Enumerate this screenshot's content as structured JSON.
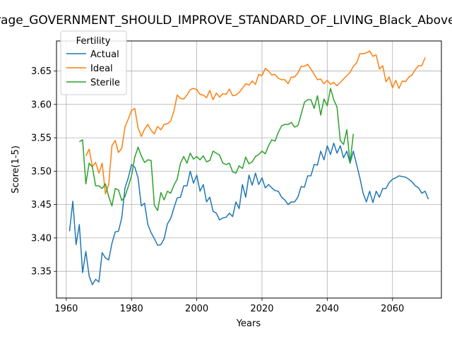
{
  "chart_data": {
    "type": "line",
    "title": "Average_GOVERNMENT_SHOULD_IMPROVE_STANDARD_OF_LIVING_Black_Above_High_School",
    "xlabel": "Years",
    "ylabel": "Score(1-5)",
    "xlim": [
      1957,
      2075
    ],
    "ylim": [
      3.31,
      3.695
    ],
    "xticks": [
      1960,
      1980,
      2000,
      2020,
      2040,
      2060
    ],
    "yticks": [
      3.35,
      3.4,
      3.45,
      3.5,
      3.55,
      3.6,
      3.65
    ],
    "grid": true,
    "legend": {
      "title": "Fertility",
      "position": "top-left"
    },
    "series": [
      {
        "name": "Actual",
        "color": "#1f77b4",
        "points": [
          [
            1961,
            3.41
          ],
          [
            1962,
            3.455
          ],
          [
            1963,
            3.39
          ],
          [
            1964,
            3.42
          ],
          [
            1965,
            3.348
          ],
          [
            1966,
            3.38
          ],
          [
            1967,
            3.343
          ],
          [
            1968,
            3.33
          ],
          [
            1969,
            3.338
          ],
          [
            1970,
            3.334
          ],
          [
            1971,
            3.378
          ],
          [
            1972,
            3.37
          ],
          [
            1973,
            3.367
          ],
          [
            1974,
            3.392
          ],
          [
            1975,
            3.409
          ],
          [
            1976,
            3.41
          ],
          [
            1977,
            3.43
          ],
          [
            1978,
            3.475
          ],
          [
            1979,
            3.49
          ],
          [
            1980,
            3.51
          ],
          [
            1981,
            3.506
          ],
          [
            1982,
            3.49
          ],
          [
            1983,
            3.448
          ],
          [
            1984,
            3.452
          ],
          [
            1985,
            3.42
          ],
          [
            1986,
            3.408
          ],
          [
            1987,
            3.399
          ],
          [
            1988,
            3.389
          ],
          [
            1989,
            3.39
          ],
          [
            1990,
            3.399
          ],
          [
            1991,
            3.421
          ],
          [
            1992,
            3.429
          ],
          [
            1993,
            3.445
          ],
          [
            1994,
            3.46
          ],
          [
            1995,
            3.461
          ],
          [
            1996,
            3.478
          ],
          [
            1997,
            3.478
          ],
          [
            1998,
            3.5
          ],
          [
            1999,
            3.482
          ],
          [
            2000,
            3.494
          ],
          [
            2001,
            3.47
          ],
          [
            2002,
            3.48
          ],
          [
            2003,
            3.454
          ],
          [
            2004,
            3.461
          ],
          [
            2005,
            3.44
          ],
          [
            2006,
            3.437
          ],
          [
            2007,
            3.427
          ],
          [
            2008,
            3.43
          ],
          [
            2009,
            3.431
          ],
          [
            2010,
            3.437
          ],
          [
            2011,
            3.432
          ],
          [
            2012,
            3.454
          ],
          [
            2013,
            3.444
          ],
          [
            2014,
            3.48
          ],
          [
            2015,
            3.461
          ],
          [
            2016,
            3.494
          ],
          [
            2017,
            3.479
          ],
          [
            2018,
            3.497
          ],
          [
            2019,
            3.48
          ],
          [
            2020,
            3.49
          ],
          [
            2021,
            3.475
          ],
          [
            2022,
            3.48
          ],
          [
            2023,
            3.475
          ],
          [
            2024,
            3.471
          ],
          [
            2025,
            3.47
          ],
          [
            2026,
            3.461
          ],
          [
            2027,
            3.457
          ],
          [
            2028,
            3.45
          ],
          [
            2029,
            3.454
          ],
          [
            2030,
            3.454
          ],
          [
            2031,
            3.461
          ],
          [
            2032,
            3.477
          ],
          [
            2033,
            3.476
          ],
          [
            2034,
            3.493
          ],
          [
            2035,
            3.493
          ],
          [
            2036,
            3.51
          ],
          [
            2037,
            3.509
          ],
          [
            2038,
            3.53
          ],
          [
            2039,
            3.517
          ],
          [
            2040,
            3.538
          ],
          [
            2041,
            3.525
          ],
          [
            2042,
            3.542
          ],
          [
            2043,
            3.527
          ],
          [
            2044,
            3.538
          ],
          [
            2045,
            3.52
          ],
          [
            2046,
            3.53
          ],
          [
            2047,
            3.512
          ],
          [
            2048,
            3.53
          ],
          [
            2049,
            3.51
          ],
          [
            2050,
            3.49
          ],
          [
            2051,
            3.467
          ],
          [
            2052,
            3.454
          ],
          [
            2053,
            3.47
          ],
          [
            2054,
            3.453
          ],
          [
            2055,
            3.47
          ],
          [
            2056,
            3.461
          ],
          [
            2057,
            3.474
          ],
          [
            2058,
            3.474
          ],
          [
            2059,
            3.483
          ],
          [
            2060,
            3.488
          ],
          [
            2061,
            3.49
          ],
          [
            2062,
            3.493
          ],
          [
            2063,
            3.492
          ],
          [
            2064,
            3.491
          ],
          [
            2065,
            3.488
          ],
          [
            2066,
            3.484
          ],
          [
            2067,
            3.478
          ],
          [
            2068,
            3.475
          ],
          [
            2069,
            3.467
          ],
          [
            2070,
            3.47
          ],
          [
            2071,
            3.458
          ]
        ]
      },
      {
        "name": "Ideal",
        "color": "#ff7f0e",
        "points": [
          [
            1966,
            3.523
          ],
          [
            1967,
            3.533
          ],
          [
            1968,
            3.507
          ],
          [
            1969,
            3.513
          ],
          [
            1970,
            3.497
          ],
          [
            1971,
            3.512
          ],
          [
            1972,
            3.466
          ],
          [
            1973,
            3.48
          ],
          [
            1974,
            3.538
          ],
          [
            1975,
            3.546
          ],
          [
            1976,
            3.528
          ],
          [
            1977,
            3.534
          ],
          [
            1978,
            3.566
          ],
          [
            1979,
            3.578
          ],
          [
            1980,
            3.591
          ],
          [
            1981,
            3.594
          ],
          [
            1982,
            3.565
          ],
          [
            1983,
            3.552
          ],
          [
            1984,
            3.563
          ],
          [
            1985,
            3.57
          ],
          [
            1986,
            3.561
          ],
          [
            1987,
            3.556
          ],
          [
            1988,
            3.567
          ],
          [
            1989,
            3.562
          ],
          [
            1990,
            3.57
          ],
          [
            1991,
            3.571
          ],
          [
            1992,
            3.575
          ],
          [
            1993,
            3.59
          ],
          [
            1994,
            3.614
          ],
          [
            1995,
            3.609
          ],
          [
            1996,
            3.608
          ],
          [
            1997,
            3.614
          ],
          [
            1998,
            3.622
          ],
          [
            1999,
            3.624
          ],
          [
            2000,
            3.622
          ],
          [
            2001,
            3.615
          ],
          [
            2002,
            3.614
          ],
          [
            2003,
            3.61
          ],
          [
            2004,
            3.621
          ],
          [
            2005,
            3.607
          ],
          [
            2006,
            3.617
          ],
          [
            2007,
            3.611
          ],
          [
            2008,
            3.616
          ],
          [
            2009,
            3.615
          ],
          [
            2010,
            3.623
          ],
          [
            2011,
            3.613
          ],
          [
            2012,
            3.614
          ],
          [
            2013,
            3.618
          ],
          [
            2014,
            3.624
          ],
          [
            2015,
            3.631
          ],
          [
            2016,
            3.629
          ],
          [
            2017,
            3.635
          ],
          [
            2018,
            3.63
          ],
          [
            2019,
            3.645
          ],
          [
            2020,
            3.643
          ],
          [
            2021,
            3.654
          ],
          [
            2022,
            3.65
          ],
          [
            2023,
            3.644
          ],
          [
            2024,
            3.645
          ],
          [
            2025,
            3.639
          ],
          [
            2026,
            3.637
          ],
          [
            2027,
            3.637
          ],
          [
            2028,
            3.631
          ],
          [
            2029,
            3.641
          ],
          [
            2030,
            3.641
          ],
          [
            2031,
            3.647
          ],
          [
            2032,
            3.657
          ],
          [
            2033,
            3.657
          ],
          [
            2034,
            3.66
          ],
          [
            2035,
            3.653
          ],
          [
            2036,
            3.645
          ],
          [
            2037,
            3.637
          ],
          [
            2038,
            3.638
          ],
          [
            2039,
            3.631
          ],
          [
            2040,
            3.636
          ],
          [
            2041,
            3.63
          ],
          [
            2042,
            3.633
          ],
          [
            2043,
            3.628
          ],
          [
            2044,
            3.633
          ],
          [
            2045,
            3.638
          ],
          [
            2046,
            3.643
          ],
          [
            2047,
            3.648
          ],
          [
            2048,
            3.657
          ],
          [
            2049,
            3.662
          ],
          [
            2050,
            3.676
          ],
          [
            2051,
            3.676
          ],
          [
            2052,
            3.677
          ],
          [
            2053,
            3.68
          ],
          [
            2054,
            3.672
          ],
          [
            2055,
            3.674
          ],
          [
            2056,
            3.653
          ],
          [
            2057,
            3.658
          ],
          [
            2058,
            3.634
          ],
          [
            2059,
            3.641
          ],
          [
            2060,
            3.625
          ],
          [
            2061,
            3.636
          ],
          [
            2062,
            3.624
          ],
          [
            2063,
            3.635
          ],
          [
            2064,
            3.634
          ],
          [
            2065,
            3.641
          ],
          [
            2066,
            3.644
          ],
          [
            2067,
            3.652
          ],
          [
            2068,
            3.658
          ],
          [
            2069,
            3.658
          ],
          [
            2070,
            3.67
          ]
        ]
      },
      {
        "name": "Sterile",
        "color": "#2ca02c",
        "points": [
          [
            1964,
            3.544
          ],
          [
            1965,
            3.547
          ],
          [
            1966,
            3.481
          ],
          [
            1967,
            3.512
          ],
          [
            1968,
            3.506
          ],
          [
            1969,
            3.478
          ],
          [
            1970,
            3.478
          ],
          [
            1971,
            3.474
          ],
          [
            1972,
            3.481
          ],
          [
            1973,
            3.462
          ],
          [
            1974,
            3.448
          ],
          [
            1975,
            3.474
          ],
          [
            1976,
            3.472
          ],
          [
            1977,
            3.456
          ],
          [
            1978,
            3.462
          ],
          [
            1979,
            3.477
          ],
          [
            1980,
            3.493
          ],
          [
            1981,
            3.521
          ],
          [
            1982,
            3.536
          ],
          [
            1983,
            3.523
          ],
          [
            1984,
            3.513
          ],
          [
            1985,
            3.517
          ],
          [
            1986,
            3.516
          ],
          [
            1987,
            3.449
          ],
          [
            1988,
            3.441
          ],
          [
            1989,
            3.468
          ],
          [
            1990,
            3.457
          ],
          [
            1991,
            3.47
          ],
          [
            1992,
            3.467
          ],
          [
            1993,
            3.479
          ],
          [
            1994,
            3.488
          ],
          [
            1995,
            3.512
          ],
          [
            1996,
            3.522
          ],
          [
            1997,
            3.512
          ],
          [
            1998,
            3.527
          ],
          [
            1999,
            3.518
          ],
          [
            2000,
            3.522
          ],
          [
            2001,
            3.517
          ],
          [
            2002,
            3.523
          ],
          [
            2003,
            3.514
          ],
          [
            2004,
            3.516
          ],
          [
            2005,
            3.53
          ],
          [
            2006,
            3.527
          ],
          [
            2007,
            3.524
          ],
          [
            2008,
            3.512
          ],
          [
            2009,
            3.51
          ],
          [
            2010,
            3.512
          ],
          [
            2011,
            3.499
          ],
          [
            2012,
            3.497
          ],
          [
            2013,
            3.508
          ],
          [
            2014,
            3.504
          ],
          [
            2015,
            3.521
          ],
          [
            2016,
            3.511
          ],
          [
            2017,
            3.514
          ],
          [
            2018,
            3.522
          ],
          [
            2019,
            3.525
          ],
          [
            2020,
            3.53
          ],
          [
            2021,
            3.526
          ],
          [
            2022,
            3.538
          ],
          [
            2023,
            3.547
          ],
          [
            2024,
            3.545
          ],
          [
            2025,
            3.558
          ],
          [
            2026,
            3.568
          ],
          [
            2027,
            3.57
          ],
          [
            2028,
            3.57
          ],
          [
            2029,
            3.573
          ],
          [
            2030,
            3.566
          ],
          [
            2031,
            3.568
          ],
          [
            2032,
            3.585
          ],
          [
            2033,
            3.603
          ],
          [
            2034,
            3.607
          ],
          [
            2035,
            3.607
          ],
          [
            2036,
            3.594
          ],
          [
            2037,
            3.613
          ],
          [
            2038,
            3.584
          ],
          [
            2039,
            3.608
          ],
          [
            2040,
            3.598
          ],
          [
            2041,
            3.624
          ],
          [
            2042,
            3.607
          ],
          [
            2043,
            3.596
          ],
          [
            2044,
            3.546
          ],
          [
            2045,
            3.54
          ],
          [
            2046,
            3.562
          ],
          [
            2047,
            3.512
          ],
          [
            2048,
            3.556
          ]
        ]
      }
    ]
  }
}
